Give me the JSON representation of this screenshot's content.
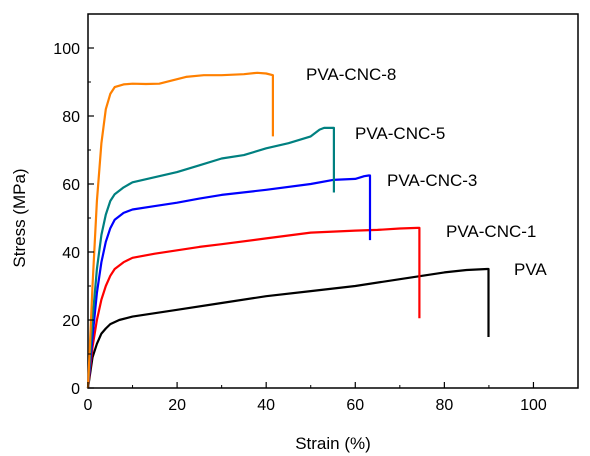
{
  "chart_data": {
    "type": "line",
    "xlabel": "Strain (%)",
    "ylabel": "Stress (MPa)",
    "xlim": [
      0,
      110
    ],
    "ylim": [
      0,
      110
    ],
    "x_ticks": [
      0,
      20,
      40,
      60,
      80,
      100
    ],
    "y_ticks": [
      0,
      20,
      40,
      60,
      80,
      100
    ],
    "x_tick_labels": [
      "0",
      "20",
      "40",
      "60",
      "80",
      "100"
    ],
    "y_tick_labels": [
      "0",
      "20",
      "40",
      "60",
      "80",
      "100"
    ],
    "grid": false,
    "legend": "none (series labeled directly at curve ends)",
    "series": [
      {
        "name": "PVA",
        "color": "#000000",
        "points": [
          [
            0,
            0
          ],
          [
            1,
            9
          ],
          [
            2,
            13
          ],
          [
            3,
            16
          ],
          [
            4,
            17.5
          ],
          [
            5,
            18.8
          ],
          [
            7,
            20
          ],
          [
            10,
            21
          ],
          [
            15,
            22
          ],
          [
            20,
            23
          ],
          [
            30,
            25
          ],
          [
            40,
            27
          ],
          [
            50,
            28.5
          ],
          [
            60,
            30
          ],
          [
            70,
            32
          ],
          [
            80,
            34
          ],
          [
            85,
            34.7
          ],
          [
            89.6,
            35
          ],
          [
            89.9,
            35
          ],
          [
            89.9,
            15
          ]
        ]
      },
      {
        "name": "PVA-CNC-1",
        "color": "#ff0000",
        "points": [
          [
            0,
            0
          ],
          [
            1,
            12
          ],
          [
            2,
            20
          ],
          [
            3,
            26
          ],
          [
            4,
            30
          ],
          [
            5,
            33
          ],
          [
            6,
            35
          ],
          [
            8,
            37
          ],
          [
            10,
            38.3
          ],
          [
            15,
            39.5
          ],
          [
            20,
            40.5
          ],
          [
            25,
            41.5
          ],
          [
            30,
            42.3
          ],
          [
            40,
            44
          ],
          [
            50,
            45.7
          ],
          [
            60,
            46.3
          ],
          [
            65,
            46.5
          ],
          [
            70,
            46.9
          ],
          [
            74,
            47.1
          ],
          [
            74.4,
            47.1
          ],
          [
            74.4,
            20.5
          ]
        ]
      },
      {
        "name": "PVA-CNC-3",
        "color": "#0000ff",
        "points": [
          [
            0,
            0
          ],
          [
            1,
            15
          ],
          [
            2,
            28
          ],
          [
            3,
            37
          ],
          [
            4,
            43
          ],
          [
            5,
            47
          ],
          [
            6,
            49.5
          ],
          [
            8,
            51.5
          ],
          [
            10,
            52.5
          ],
          [
            15,
            53.5
          ],
          [
            20,
            54.5
          ],
          [
            25,
            55.7
          ],
          [
            30,
            56.8
          ],
          [
            40,
            58.3
          ],
          [
            50,
            60
          ],
          [
            55,
            61.2
          ],
          [
            60,
            61.5
          ],
          [
            62,
            62.3
          ],
          [
            63,
            62.5
          ],
          [
            63.3,
            62.5
          ],
          [
            63.3,
            43.5
          ]
        ]
      },
      {
        "name": "PVA-CNC-5",
        "color": "#008080",
        "points": [
          [
            0,
            0
          ],
          [
            1,
            20
          ],
          [
            2,
            35
          ],
          [
            3,
            45
          ],
          [
            4,
            51
          ],
          [
            5,
            55
          ],
          [
            6,
            57
          ],
          [
            8,
            59
          ],
          [
            10,
            60.5
          ],
          [
            15,
            62
          ],
          [
            20,
            63.5
          ],
          [
            25,
            65.5
          ],
          [
            30,
            67.5
          ],
          [
            35,
            68.5
          ],
          [
            40,
            70.5
          ],
          [
            45,
            72
          ],
          [
            50,
            74
          ],
          [
            52,
            76
          ],
          [
            53,
            76.5
          ],
          [
            55,
            76.5
          ],
          [
            55.2,
            76.5
          ],
          [
            55.2,
            57.5
          ]
        ]
      },
      {
        "name": "PVA-CNC-8",
        "color": "#ff8000",
        "points": [
          [
            0,
            0
          ],
          [
            1,
            30
          ],
          [
            2,
            55
          ],
          [
            3,
            72
          ],
          [
            4,
            82
          ],
          [
            5,
            86.5
          ],
          [
            6,
            88.5
          ],
          [
            8,
            89.3
          ],
          [
            10,
            89.5
          ],
          [
            13,
            89.4
          ],
          [
            16,
            89.5
          ],
          [
            19,
            90.5
          ],
          [
            22,
            91.5
          ],
          [
            26,
            92
          ],
          [
            30,
            92
          ],
          [
            35,
            92.3
          ],
          [
            38,
            92.7
          ],
          [
            40,
            92.5
          ],
          [
            41.5,
            92
          ],
          [
            41.5,
            74
          ]
        ]
      }
    ]
  }
}
